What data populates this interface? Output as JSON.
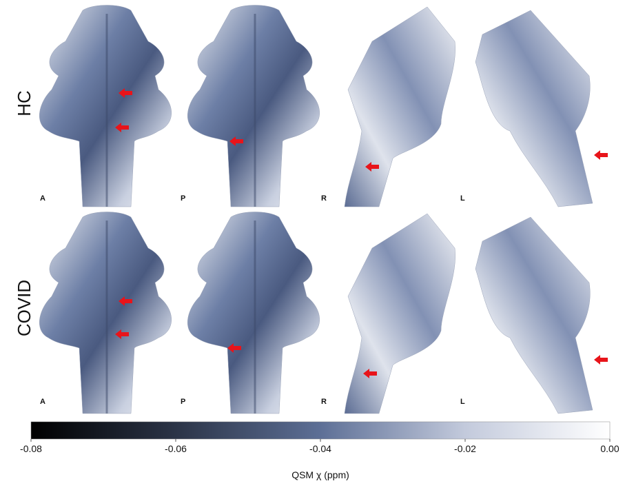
{
  "rows": [
    {
      "label": "HC",
      "views": [
        "A",
        "P",
        "R",
        "L"
      ]
    },
    {
      "label": "COVID",
      "views": [
        "A",
        "P",
        "R",
        "L"
      ]
    }
  ],
  "colorbar": {
    "label": "QSM χ (ppm)",
    "lim": [
      -0.08,
      0
    ],
    "ticks": [
      -0.08,
      -0.06,
      -0.04,
      {
        "value": 0,
        "label": "0.00"
      },
      -0.02
    ],
    "colors": [
      "#000000",
      "#2b3447",
      "#5d6f96",
      "#c3cadc",
      "#ffffff"
    ]
  }
}
